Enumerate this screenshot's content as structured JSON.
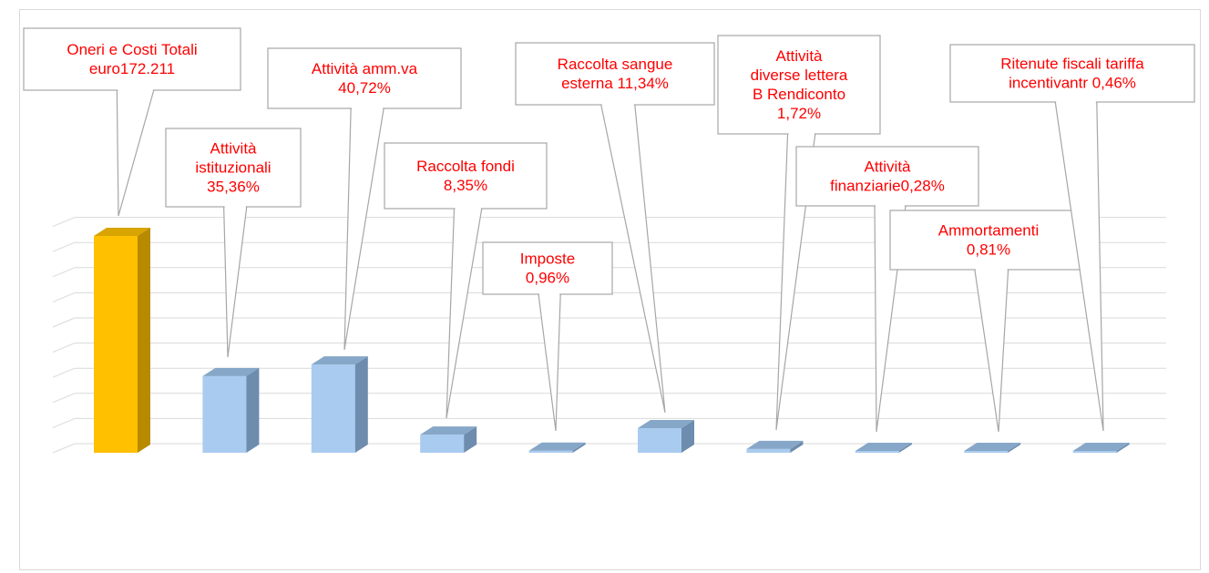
{
  "chart_data": {
    "type": "bar",
    "style": "3d-column-with-callouts",
    "grid": true,
    "legend": "none",
    "label_color": "#ff0000",
    "highlight_color": "#ffc000",
    "bar_color": "#a9cbef",
    "categories": [
      "Oneri e Costi Totali",
      "Attività istituzionali",
      "Attività amm.va",
      "Raccolta fondi",
      "Imposte",
      "Raccolta sangue esterna",
      "Attività diverse lettera B Rendiconto",
      "Attività finanziarie",
      "Ammortamenti",
      "Ritenute fiscali tariffa incentivantr"
    ],
    "values": [
      100,
      35.36,
      40.72,
      8.35,
      0.96,
      11.34,
      1.72,
      0.28,
      0.81,
      0.46
    ],
    "labels": [
      [
        "Oneri e Costi Totali",
        "euro172.211"
      ],
      [
        "Attività",
        "istituzionali",
        "35,36%"
      ],
      [
        "Attività amm.va",
        "40,72%"
      ],
      [
        "Raccolta fondi",
        "8,35%"
      ],
      [
        "Imposte",
        "0,96%"
      ],
      [
        "Raccolta sangue",
        "esterna 11,34%"
      ],
      [
        "Attività",
        "diverse lettera",
        "B Rendiconto",
        "1,72%"
      ],
      [
        "Attività",
        "finanziarie0,28%"
      ],
      [
        "Ammortamenti",
        "0,81%"
      ],
      [
        "Ritenute fiscali tariffa",
        "incentivantr 0,46%"
      ]
    ]
  }
}
